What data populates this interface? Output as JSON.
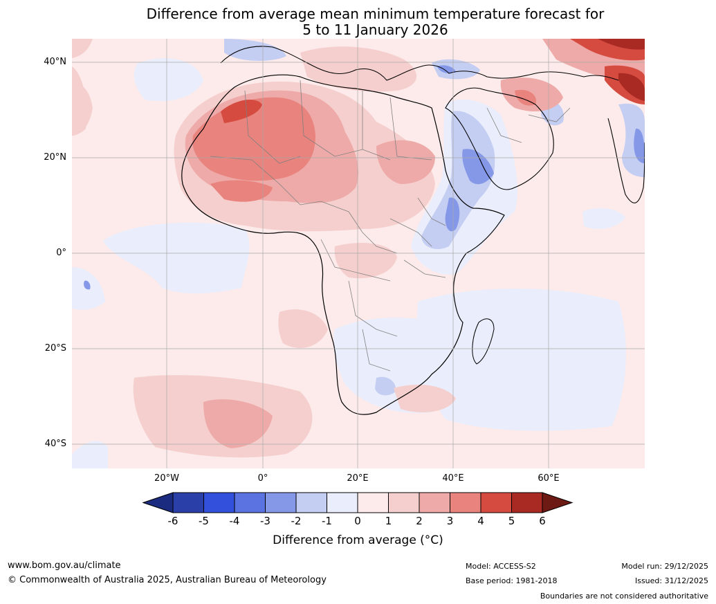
{
  "title": {
    "line1": "Difference from average mean minimum temperature forecast for",
    "line2": "5 to 11 January 2026"
  },
  "map": {
    "region": "Africa and surrounding oceans",
    "lat_ticks": [
      "40°N",
      "20°N",
      "0°",
      "20°S",
      "40°S"
    ],
    "lon_ticks": [
      "20°W",
      "0°",
      "20°E",
      "40°E",
      "60°E"
    ]
  },
  "colorbar": {
    "title": "Difference from average (°C)",
    "tick_labels": [
      "-6",
      "-5",
      "-4",
      "-3",
      "-2",
      "-1",
      "0",
      "1",
      "2",
      "3",
      "4",
      "5",
      "6"
    ],
    "colors": [
      "#1a2b80",
      "#2a3fa8",
      "#3350dd",
      "#5b73e0",
      "#8598e8",
      "#c4cdf2",
      "#eaedfb",
      "#fcebea",
      "#f5cfcd",
      "#eeaaa8",
      "#e8837e",
      "#d64b40",
      "#a82a23",
      "#6e1a14"
    ]
  },
  "footer": {
    "website": "www.bom.gov.au/climate",
    "copyright": "© Commonwealth of Australia 2025, Australian Bureau of Meteorology",
    "model": "Model: ACCESS-S2",
    "base_period": "Base period: 1981-2018",
    "model_run": "Model run: 29/12/2025",
    "issued": "Issued: 31/12/2025",
    "disclaimer": "Boundaries are not considered authoritative"
  }
}
